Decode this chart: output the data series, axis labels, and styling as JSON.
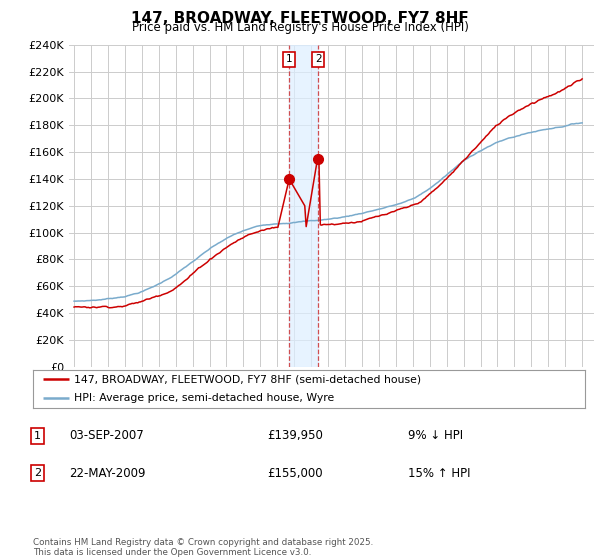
{
  "title": "147, BROADWAY, FLEETWOOD, FY7 8HF",
  "subtitle": "Price paid vs. HM Land Registry's House Price Index (HPI)",
  "ylim": [
    0,
    240000
  ],
  "ytick_step": 20000,
  "background_color": "#ffffff",
  "grid_color": "#cccccc",
  "red_line_color": "#cc0000",
  "blue_line_color": "#7aabcc",
  "shade_color": "#ddeeff",
  "legend_label_red": "147, BROADWAY, FLEETWOOD, FY7 8HF (semi-detached house)",
  "legend_label_blue": "HPI: Average price, semi-detached house, Wyre",
  "marker1_year": 2007.67,
  "marker2_year": 2009.42,
  "marker1_price": 139950,
  "marker2_price": 155000,
  "table_row1": [
    "1",
    "03-SEP-2007",
    "£139,950",
    "9% ↓ HPI"
  ],
  "table_row2": [
    "2",
    "22-MAY-2009",
    "£155,000",
    "15% ↑ HPI"
  ],
  "footer": "Contains HM Land Registry data © Crown copyright and database right 2025.\nThis data is licensed under the Open Government Licence v3.0.",
  "x_start_year": 1995,
  "x_end_year": 2025
}
